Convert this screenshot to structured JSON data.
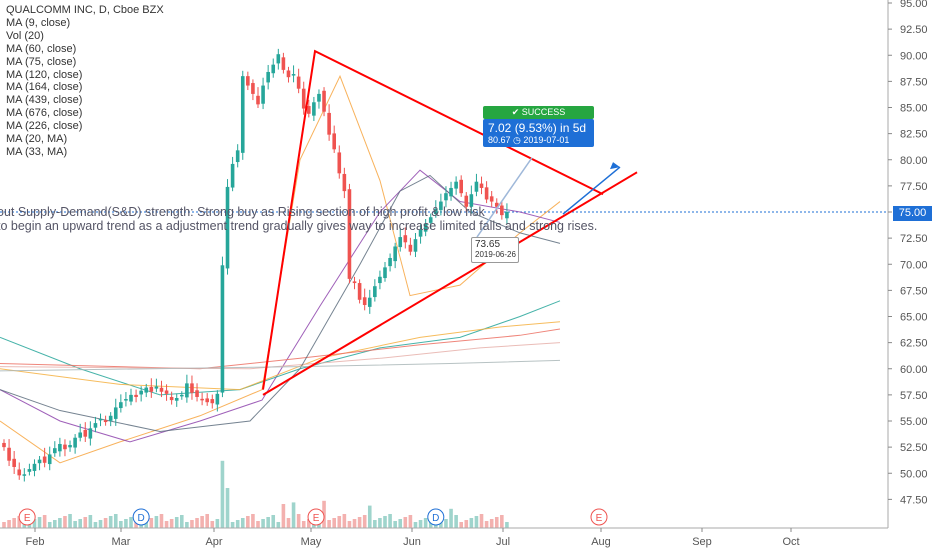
{
  "legend": {
    "title": "QUALCOMM INC, D, Cboe BZX",
    "indicators": [
      "MA (9, close)",
      "Vol (20)",
      "MA (60, close)",
      "MA (75, close)",
      "MA (120, close)",
      "MA (164, close)",
      "MA (439, close)",
      "MA (676, close)",
      "MA (226, close)",
      "MA (20, MA)",
      "MA (33, MA)"
    ]
  },
  "annotation": {
    "line1": "out Supply-Demand(S&D) strength: Strong buy as Rising section of high profit & low risk",
    "line2": " to begin an upward trend as a adjustment trend gradually gives way to increase limited falls and strong rises."
  },
  "trade": {
    "badge": "✔ SUCCESS",
    "target_line1": "7.02 (9.53%) in 5d",
    "target_line2": "80.67  ◷ 2019-07-01",
    "start_price": "73.65",
    "start_date": "2019-06-26"
  },
  "price_scale": {
    "last_price_label": "75.00",
    "colors": {
      "last_price": "#1e6fd6",
      "up": "#26a69a",
      "down": "#ef5350",
      "trend": "#ff0000",
      "arrow": "#1e6fd6"
    }
  },
  "chart_data": {
    "type": "candlestick",
    "title": "QUALCOMM INC, D, Cboe BZX",
    "y_ticks": [
      "95.00",
      "92.50",
      "90.00",
      "87.50",
      "85.00",
      "82.50",
      "80.00",
      "77.50",
      "75.00",
      "72.50",
      "70.00",
      "67.50",
      "65.00",
      "62.50",
      "60.00",
      "57.50",
      "55.00",
      "52.50",
      "50.00",
      "47.50"
    ],
    "x_ticks": [
      "Feb",
      "Mar",
      "Apr",
      "May",
      "Jun",
      "Jul",
      "Aug",
      "Sep",
      "Oct"
    ],
    "ylim": [
      46,
      95.5
    ],
    "last_price": 75.0,
    "close_series": [
      52.5,
      51.2,
      50.6,
      49.8,
      49.9,
      50.4,
      50.9,
      51.3,
      51.0,
      51.8,
      52.4,
      52.8,
      52.3,
      52.7,
      53.4,
      53.9,
      53.5,
      54.3,
      54.8,
      55.2,
      54.9,
      55.5,
      56.3,
      56.8,
      57.1,
      57.5,
      57.3,
      57.9,
      58.2,
      57.8,
      58.3,
      57.8,
      57.6,
      57.0,
      57.2,
      57.5,
      58.6,
      57.7,
      57.3,
      57.1,
      56.8,
      56.7,
      57.6,
      69.9,
      77.4,
      79.6,
      80.9,
      88.0,
      87.1,
      86.3,
      85.3,
      87.1,
      88.4,
      89.1,
      90.1,
      88.6,
      87.9,
      88.2,
      86.8,
      84.9,
      84.4,
      85.5,
      86.3,
      84.6,
      82.4,
      81.0,
      78.7,
      77.0,
      68.6,
      68.2,
      66.6,
      66.1,
      66.8,
      67.9,
      68.8,
      69.7,
      70.6,
      71.7,
      72.6,
      72.1,
      71.2,
      72.4,
      73.3,
      73.9,
      74.5,
      75.3,
      76.0,
      76.8,
      77.3,
      77.9,
      76.8,
      75.5,
      76.7,
      77.9,
      77.3,
      76.2,
      76.0,
      75.5,
      74.7,
      75.0
    ],
    "events": [
      {
        "label": "E",
        "series": "earnings",
        "index": 2
      },
      {
        "label": "D",
        "series": "dividend",
        "index": 27
      },
      {
        "label": "E",
        "series": "earnings",
        "index": 63
      },
      {
        "label": "D",
        "series": "dividend",
        "index": 85
      },
      {
        "label": "E",
        "series": "earnings",
        "index": 121
      }
    ],
    "trendlines": [
      {
        "from": [
          57.4,
          0
        ],
        "to": [
          90.4,
          1
        ],
        "label": ""
      }
    ]
  }
}
